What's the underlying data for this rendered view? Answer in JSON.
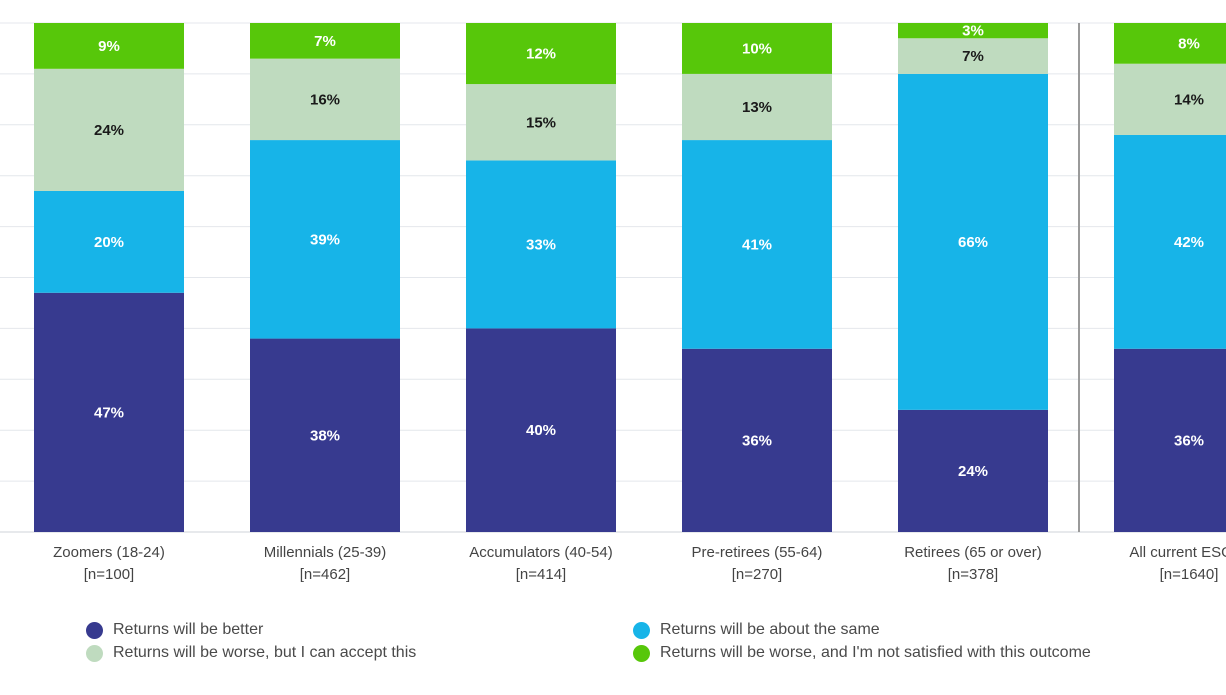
{
  "chart_data": {
    "type": "bar",
    "stacked": true,
    "orientation": "vertical",
    "ylim": [
      0,
      100
    ],
    "grid": true,
    "legend_position": "bottom",
    "categories": [
      {
        "label": "Zoomers (18-24)",
        "n": "[n=100]"
      },
      {
        "label": "Millennials (25-39)",
        "n": "[n=462]"
      },
      {
        "label": "Accumulators (40-54)",
        "n": "[n=414]"
      },
      {
        "label": "Pre-retirees (55-64)",
        "n": "[n=270]"
      },
      {
        "label": "Retirees (65 or over)",
        "n": "[n=378]"
      },
      {
        "label": "All current ESG in",
        "n": "[n=1640]"
      }
    ],
    "series": [
      {
        "name": "Returns will be better",
        "color": "#373a8f",
        "label_color": "#ffffff",
        "values": [
          47,
          38,
          40,
          36,
          24,
          36
        ],
        "labels": [
          "47%",
          "38%",
          "40%",
          "36%",
          "24%",
          "36%"
        ]
      },
      {
        "name": "Returns will be about the same",
        "color": "#17b4e8",
        "label_color": "#ffffff",
        "values": [
          20,
          39,
          33,
          41,
          66,
          42
        ],
        "labels": [
          "20%",
          "39%",
          "33%",
          "41%",
          "66%",
          "42%"
        ]
      },
      {
        "name": "Returns will be worse, but I can accept this",
        "color": "#bfdbbf",
        "label_color": "#1a1a1a",
        "values": [
          24,
          16,
          15,
          13,
          7,
          14
        ],
        "labels": [
          "24%",
          "16%",
          "15%",
          "13%",
          "7%",
          "14%"
        ]
      },
      {
        "name": "Returns will be worse, and I'm not satisfied with this outcome",
        "color": "#57c70a",
        "label_color": "#ffffff",
        "values": [
          9,
          7,
          12,
          10,
          3,
          8
        ],
        "labels": [
          "9%",
          "7%",
          "12%",
          "10%",
          "3%",
          "8%"
        ]
      }
    ]
  },
  "legend": {
    "items": [
      {
        "label": "Returns will be better",
        "color": "#373a8f"
      },
      {
        "label": "Returns will be about the same",
        "color": "#17b4e8"
      },
      {
        "label": "Returns will be worse, but I can accept this",
        "color": "#bfdbbf"
      },
      {
        "label": "Returns will be worse, and I'm not satisfied with this outcome",
        "color": "#57c70a"
      }
    ]
  }
}
